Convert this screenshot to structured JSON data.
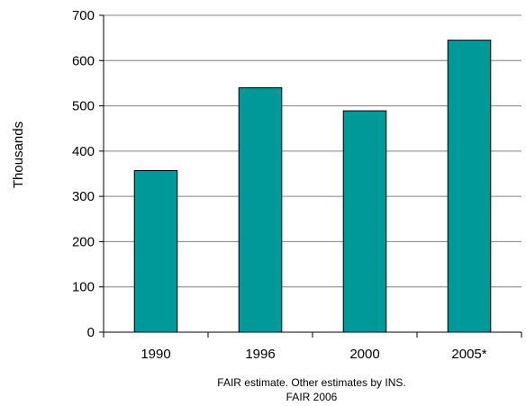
{
  "chart_data": {
    "type": "bar",
    "title": "",
    "xlabel": "",
    "ylabel": "Thousands",
    "categories": [
      "1990",
      "1996",
      "2000",
      "2005*"
    ],
    "values": [
      357,
      540,
      489,
      645
    ],
    "ylim": [
      0,
      700
    ],
    "yticks": [
      0,
      100,
      200,
      300,
      400,
      500,
      600,
      700
    ],
    "grid": true,
    "legend": "none",
    "bar_color": "#009999",
    "notes": [
      "FAIR estimate. Other estimates by INS.",
      "FAIR 2006"
    ]
  }
}
